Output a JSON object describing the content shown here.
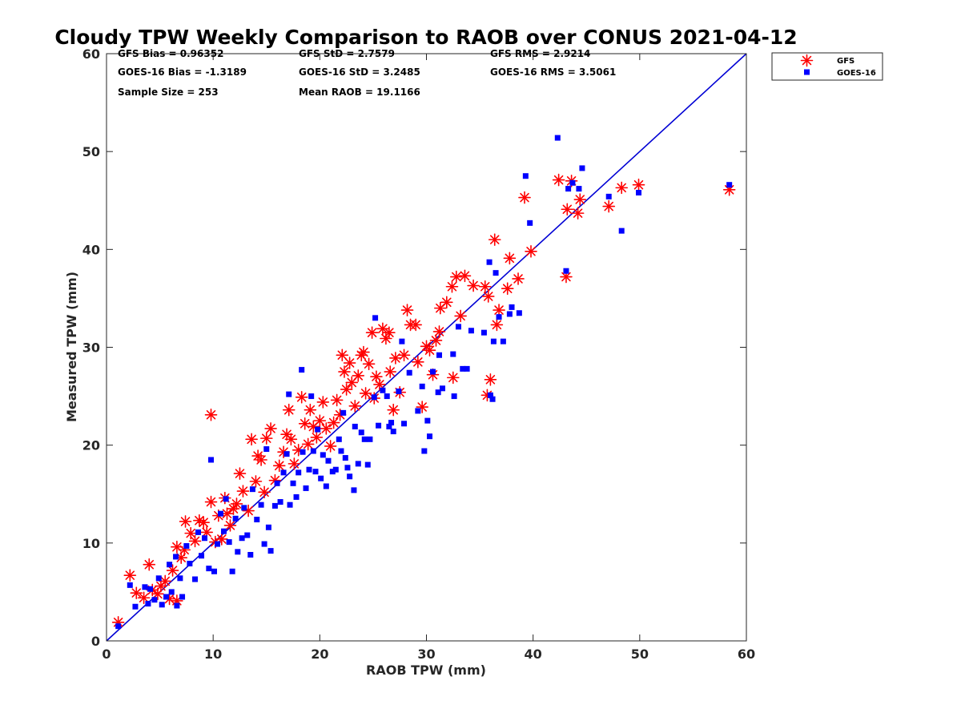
{
  "chart_data": {
    "type": "scatter",
    "title": "Cloudy TPW Weekly Comparison to RAOB over CONUS 2021-04-12",
    "xlabel": "RAOB TPW (mm)",
    "ylabel": "Measured TPW (mm)",
    "xlim": [
      0,
      60
    ],
    "ylim": [
      0,
      60
    ],
    "xticks": [
      0,
      10,
      20,
      30,
      40,
      50,
      60
    ],
    "yticks": [
      0,
      10,
      20,
      30,
      40,
      50,
      60
    ],
    "grid": false,
    "legend_position": "top-right outside",
    "reference_line": {
      "x": [
        0,
        60
      ],
      "y": [
        0,
        60
      ],
      "color": "#0000d4"
    },
    "stats": [
      "GFS Bias = 0.96352",
      "GFS StD = 2.7579",
      "GFS RMS = 2.9214",
      "GOES-16 Bias = -1.3189",
      "GOES-16 StD = 3.2485",
      "GOES-16 RMS = 3.5061",
      "Sample Size = 253",
      "Mean RAOB = 19.1166"
    ],
    "series": [
      {
        "name": "GFS",
        "marker": "asterisk",
        "color": "#ff0000",
        "points": [
          [
            1.1,
            1.9
          ],
          [
            2.2,
            6.7
          ],
          [
            2.8,
            4.9
          ],
          [
            3.5,
            4.4
          ],
          [
            4,
            7.8
          ],
          [
            4.3,
            5.2
          ],
          [
            4.8,
            4.8
          ],
          [
            5.1,
            5.6
          ],
          [
            5.5,
            6.1
          ],
          [
            5.9,
            4.3
          ],
          [
            6.2,
            7.2
          ],
          [
            6.6,
            4.1
          ],
          [
            6.6,
            9.6
          ],
          [
            7,
            8.5
          ],
          [
            7.3,
            9.3
          ],
          [
            7.4,
            12.2
          ],
          [
            7.9,
            11
          ],
          [
            8.3,
            10.2
          ],
          [
            8.7,
            12.3
          ],
          [
            9.1,
            12.1
          ],
          [
            9.4,
            11.1
          ],
          [
            9.8,
            14.2
          ],
          [
            9.8,
            23.1
          ],
          [
            10.2,
            10.1
          ],
          [
            10.5,
            12.8
          ],
          [
            10.8,
            10.4
          ],
          [
            11.1,
            14.6
          ],
          [
            11.3,
            13
          ],
          [
            11.6,
            11.8
          ],
          [
            11.9,
            13.5
          ],
          [
            12.2,
            14
          ],
          [
            12.5,
            17.1
          ],
          [
            12.8,
            15.3
          ],
          [
            13.3,
            13.3
          ],
          [
            13.6,
            20.6
          ],
          [
            14,
            16.3
          ],
          [
            14.2,
            18.9
          ],
          [
            14.5,
            18.5
          ],
          [
            14.8,
            15.2
          ],
          [
            15,
            20.7
          ],
          [
            15.4,
            21.7
          ],
          [
            15.8,
            16.4
          ],
          [
            16.2,
            17.9
          ],
          [
            16.6,
            19.3
          ],
          [
            16.9,
            21.1
          ],
          [
            17.1,
            23.6
          ],
          [
            17.3,
            20.6
          ],
          [
            17.6,
            18.1
          ],
          [
            18,
            19.5
          ],
          [
            18.3,
            24.9
          ],
          [
            18.6,
            22.2
          ],
          [
            18.9,
            20.1
          ],
          [
            19.1,
            23.6
          ],
          [
            19.4,
            21.9
          ],
          [
            19.7,
            20.8
          ],
          [
            20,
            22.5
          ],
          [
            20.3,
            24.4
          ],
          [
            20.6,
            21.7
          ],
          [
            21,
            19.9
          ],
          [
            21.3,
            22.3
          ],
          [
            21.6,
            24.6
          ],
          [
            21.9,
            23.1
          ],
          [
            22.1,
            29.2
          ],
          [
            22.3,
            27.5
          ],
          [
            22.5,
            25.7
          ],
          [
            22.8,
            28.4
          ],
          [
            23,
            26.4
          ],
          [
            23.3,
            24
          ],
          [
            23.6,
            27.1
          ],
          [
            23.9,
            29.2
          ],
          [
            24.1,
            29.5
          ],
          [
            24.3,
            25.3
          ],
          [
            24.6,
            28.3
          ],
          [
            24.9,
            31.5
          ],
          [
            25.1,
            24.8
          ],
          [
            25.3,
            27
          ],
          [
            25.6,
            26.2
          ],
          [
            25.9,
            31.9
          ],
          [
            26.2,
            30.9
          ],
          [
            26.5,
            31.5
          ],
          [
            26.6,
            27.5
          ],
          [
            26.9,
            23.6
          ],
          [
            27.1,
            28.9
          ],
          [
            27.5,
            25.4
          ],
          [
            27.9,
            29.2
          ],
          [
            28.2,
            33.8
          ],
          [
            28.5,
            32.3
          ],
          [
            29,
            32.3
          ],
          [
            29.2,
            28.5
          ],
          [
            29.6,
            23.9
          ],
          [
            30,
            30.1
          ],
          [
            30.3,
            29.7
          ],
          [
            30.6,
            27.2
          ],
          [
            30.9,
            30.7
          ],
          [
            31.2,
            31.6
          ],
          [
            31.3,
            34
          ],
          [
            31.9,
            34.6
          ],
          [
            32.4,
            36.2
          ],
          [
            32.5,
            26.9
          ],
          [
            32.8,
            37.2
          ],
          [
            33.2,
            33.2
          ],
          [
            33.6,
            37.3
          ],
          [
            34.4,
            36.3
          ],
          [
            35.5,
            36.2
          ],
          [
            35.7,
            25.1
          ],
          [
            35.8,
            35.2
          ],
          [
            36,
            26.7
          ],
          [
            36.4,
            41
          ],
          [
            36.6,
            32.3
          ],
          [
            36.8,
            33.8
          ],
          [
            37.6,
            36
          ],
          [
            37.8,
            39.1
          ],
          [
            38.6,
            37
          ],
          [
            39.2,
            45.3
          ],
          [
            39.8,
            39.8
          ],
          [
            42.4,
            47.1
          ],
          [
            43.1,
            37.2
          ],
          [
            43.2,
            44.1
          ],
          [
            43.6,
            47
          ],
          [
            44.2,
            43.7
          ],
          [
            44.4,
            45.1
          ],
          [
            47.1,
            44.4
          ],
          [
            48.3,
            46.3
          ],
          [
            49.9,
            46.6
          ],
          [
            58.4,
            46.1
          ]
        ]
      },
      {
        "name": "GOES-16",
        "marker": "square",
        "color": "#0000ff",
        "points": [
          [
            1.1,
            1.5
          ],
          [
            2.2,
            5.7
          ],
          [
            2.7,
            3.5
          ],
          [
            3.6,
            5.5
          ],
          [
            3.9,
            3.8
          ],
          [
            4.1,
            5.3
          ],
          [
            4.5,
            4.2
          ],
          [
            4.9,
            6.4
          ],
          [
            5.2,
            3.7
          ],
          [
            5.6,
            4.5
          ],
          [
            5.9,
            7.8
          ],
          [
            6.1,
            5
          ],
          [
            6.5,
            8.6
          ],
          [
            6.6,
            3.6
          ],
          [
            6.9,
            6.4
          ],
          [
            7.1,
            4.5
          ],
          [
            7.5,
            9.7
          ],
          [
            7.8,
            7.9
          ],
          [
            8.3,
            6.3
          ],
          [
            8.6,
            11.1
          ],
          [
            8.9,
            8.7
          ],
          [
            9.2,
            10.5
          ],
          [
            9.6,
            7.4
          ],
          [
            9.8,
            18.5
          ],
          [
            10.1,
            7.1
          ],
          [
            10.4,
            9.9
          ],
          [
            10.7,
            13
          ],
          [
            11,
            11.2
          ],
          [
            11.2,
            14.5
          ],
          [
            11.5,
            10.1
          ],
          [
            11.8,
            7.1
          ],
          [
            12.1,
            12.5
          ],
          [
            12.3,
            9.1
          ],
          [
            12.7,
            10.5
          ],
          [
            12.9,
            13.6
          ],
          [
            13.2,
            10.8
          ],
          [
            13.5,
            8.8
          ],
          [
            13.7,
            15.5
          ],
          [
            14.1,
            12.4
          ],
          [
            14.5,
            13.9
          ],
          [
            14.8,
            9.9
          ],
          [
            15,
            19.6
          ],
          [
            15.2,
            11.6
          ],
          [
            15.4,
            9.2
          ],
          [
            15.8,
            13.8
          ],
          [
            16,
            16.1
          ],
          [
            16.3,
            14.2
          ],
          [
            16.6,
            17.2
          ],
          [
            16.9,
            19.1
          ],
          [
            17.1,
            25.2
          ],
          [
            17.2,
            13.9
          ],
          [
            17.5,
            16.1
          ],
          [
            17.8,
            14.7
          ],
          [
            18,
            17.2
          ],
          [
            18.3,
            27.7
          ],
          [
            18.4,
            19.3
          ],
          [
            18.7,
            15.6
          ],
          [
            19,
            17.5
          ],
          [
            19.2,
            25
          ],
          [
            19.4,
            19.4
          ],
          [
            19.6,
            17.3
          ],
          [
            19.8,
            21.6
          ],
          [
            20.1,
            16.6
          ],
          [
            20.3,
            19
          ],
          [
            20.6,
            15.8
          ],
          [
            20.8,
            18.4
          ],
          [
            21.2,
            17.3
          ],
          [
            21.5,
            17.5
          ],
          [
            21.8,
            20.6
          ],
          [
            22,
            19.4
          ],
          [
            22.2,
            23.3
          ],
          [
            22.4,
            18.7
          ],
          [
            22.6,
            17.7
          ],
          [
            22.8,
            16.8
          ],
          [
            23.2,
            15.4
          ],
          [
            23.3,
            21.9
          ],
          [
            23.6,
            18.1
          ],
          [
            23.9,
            21.3
          ],
          [
            24.2,
            20.6
          ],
          [
            24.5,
            18
          ],
          [
            24.7,
            20.6
          ],
          [
            25.1,
            24.9
          ],
          [
            25.2,
            33
          ],
          [
            25.5,
            22
          ],
          [
            25.9,
            25.6
          ],
          [
            26.3,
            25
          ],
          [
            26.5,
            21.9
          ],
          [
            26.7,
            22.3
          ],
          [
            26.9,
            21.4
          ],
          [
            27.4,
            25.5
          ],
          [
            27.7,
            30.6
          ],
          [
            27.9,
            22.2
          ],
          [
            28.4,
            27.4
          ],
          [
            29.2,
            23.5
          ],
          [
            29.6,
            26
          ],
          [
            29.8,
            19.4
          ],
          [
            30.1,
            22.5
          ],
          [
            30.3,
            20.9
          ],
          [
            30.6,
            27.5
          ],
          [
            31.1,
            25.4
          ],
          [
            31.2,
            29.2
          ],
          [
            31.5,
            25.8
          ],
          [
            32.5,
            29.3
          ],
          [
            32.6,
            25
          ],
          [
            33,
            32.1
          ],
          [
            33.4,
            27.8
          ],
          [
            33.8,
            27.8
          ],
          [
            34.2,
            31.7
          ],
          [
            35.4,
            31.5
          ],
          [
            35.9,
            38.7
          ],
          [
            36,
            25.1
          ],
          [
            36.2,
            24.7
          ],
          [
            36.3,
            30.6
          ],
          [
            36.5,
            37.6
          ],
          [
            36.8,
            33.1
          ],
          [
            37.2,
            30.6
          ],
          [
            37.8,
            33.4
          ],
          [
            38,
            34.1
          ],
          [
            38.7,
            33.5
          ],
          [
            39.3,
            47.5
          ],
          [
            39.7,
            42.7
          ],
          [
            42.3,
            51.4
          ],
          [
            43.1,
            37.8
          ],
          [
            43.3,
            46.2
          ],
          [
            43.7,
            46.8
          ],
          [
            44.3,
            46.2
          ],
          [
            44.6,
            48.3
          ],
          [
            47.1,
            45.4
          ],
          [
            48.3,
            41.9
          ],
          [
            49.9,
            45.8
          ],
          [
            58.4,
            46.6
          ]
        ]
      }
    ]
  }
}
